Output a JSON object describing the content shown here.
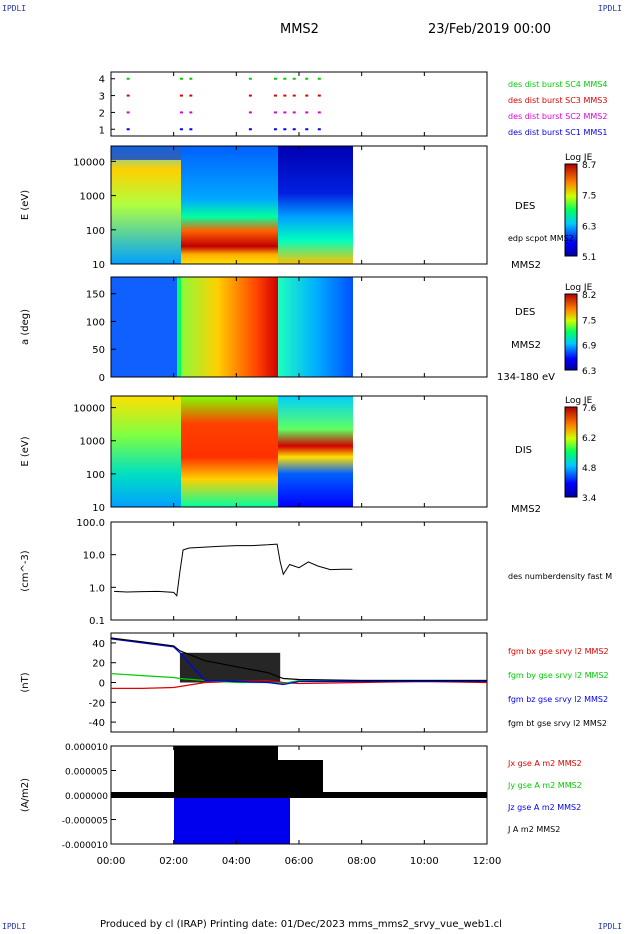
{
  "corners": {
    "tl": "IPDLI",
    "tr": "IPDLI",
    "bl": "IPDLI",
    "br": "IPDLI"
  },
  "header": {
    "spacecraft": "MMS2",
    "date": "23/Feb/2019 00:00"
  },
  "footer": {
    "text": "Produced by cl (IRAP)   Printing date: 01/Dec/2023   mms_mms2_srvy_vue_web1.cl"
  },
  "colors": {
    "black": "#000000",
    "red": "#e00000",
    "green": "#00cc00",
    "blue": "#0000ee",
    "magenta": "#dd00dd"
  },
  "chart_data": [
    {
      "type": "scatter",
      "panel": "burst",
      "y_ticks": [
        "1",
        "2",
        "3",
        "4"
      ],
      "ylim": [
        0.6,
        4.4
      ],
      "xlim": [
        0,
        12
      ],
      "series": [
        {
          "name": "des dist burst SC1 MMS1",
          "color": "#0000ee",
          "y": 1,
          "x": [
            0.5,
            2.2,
            2.5,
            4.4,
            5.2,
            5.5,
            5.8,
            6.2,
            6.6
          ]
        },
        {
          "name": "des dist burst SC2 MMS2",
          "color": "#dd00dd",
          "y": 2,
          "x": [
            0.5,
            2.2,
            2.5,
            4.4,
            5.2,
            5.5,
            5.8,
            6.2,
            6.6
          ]
        },
        {
          "name": "des dist burst SC3 MMS3",
          "color": "#e00000",
          "y": 3,
          "x": [
            0.5,
            2.2,
            2.5,
            4.4,
            5.2,
            5.5,
            5.8,
            6.2,
            6.6
          ]
        },
        {
          "name": "des dist burst SC4 MMS4",
          "color": "#00cc00",
          "y": 4,
          "x": [
            0.5,
            2.2,
            2.5,
            4.4,
            5.2,
            5.5,
            5.8,
            6.2,
            6.6
          ]
        }
      ]
    },
    {
      "type": "heatmap",
      "panel": "des-energy",
      "ylabel": "E (eV)",
      "y_ticks": [
        "10",
        "100",
        "1000",
        "10000"
      ],
      "right_labels": [
        "DES",
        "edp scpot MMS2",
        "MMS2"
      ],
      "colorbar": {
        "title": "Log JE",
        "ticks": [
          "8.7",
          "7.5",
          "6.3",
          "5.1"
        ]
      }
    },
    {
      "type": "heatmap",
      "panel": "des-pitch",
      "ylabel": "a (deg)",
      "y_ticks": [
        "0",
        "50",
        "100",
        "150"
      ],
      "right_labels": [
        "DES",
        "MMS2",
        "134-180 eV"
      ],
      "colorbar": {
        "title": "Log JE",
        "ticks": [
          "8.2",
          "7.5",
          "6.9",
          "6.3"
        ]
      }
    },
    {
      "type": "heatmap",
      "panel": "dis-energy",
      "ylabel": "E (eV)",
      "y_ticks": [
        "10",
        "100",
        "1000",
        "10000"
      ],
      "right_labels": [
        "DIS",
        "MMS2"
      ],
      "colorbar": {
        "title": "Log JE",
        "ticks": [
          "7.6",
          "6.2",
          "4.8",
          "3.4"
        ]
      }
    },
    {
      "type": "line",
      "panel": "density",
      "ylabel": "(cm^-3)",
      "y_ticks": [
        "0.1",
        "1.0",
        "10.0",
        "100.0"
      ],
      "ylim": [
        0.1,
        100
      ],
      "log": true,
      "series": [
        {
          "name": "des numberdensity fast M",
          "color": "#000000",
          "x": [
            0.1,
            0.5,
            1.0,
            1.5,
            2.0,
            2.1,
            2.2,
            2.3,
            2.5,
            3.0,
            3.5,
            4.0,
            4.5,
            5.0,
            5.3,
            5.4,
            5.5,
            5.7,
            6.0,
            6.3,
            6.6,
            7.0,
            7.4,
            7.7
          ],
          "y": [
            0.75,
            0.72,
            0.74,
            0.75,
            0.7,
            0.55,
            3.0,
            14,
            16,
            17,
            18,
            19,
            19,
            20,
            21,
            6,
            2.5,
            5,
            4,
            6,
            4.5,
            3.5,
            3.6,
            3.6
          ]
        }
      ]
    },
    {
      "type": "line",
      "panel": "fgm",
      "ylabel": "(nT)",
      "y_ticks": [
        "-40",
        "-20",
        "0",
        "20",
        "40"
      ],
      "ylim": [
        -50,
        50
      ],
      "series": [
        {
          "name": "fgm bx gse srvy l2 MMS2",
          "color": "#e00000",
          "x": [
            0,
            1,
            2,
            2.2,
            3,
            4,
            5,
            5.5,
            6,
            8,
            10,
            12
          ],
          "y": [
            -6,
            -6,
            -5,
            -4,
            0,
            1,
            2,
            0,
            -1,
            0,
            1,
            0
          ]
        },
        {
          "name": "fgm by gse srvy l2 MMS2",
          "color": "#00cc00",
          "x": [
            0,
            1,
            2,
            2.2,
            3,
            4,
            5,
            5.5,
            6,
            8,
            10,
            12
          ],
          "y": [
            9,
            7,
            5,
            4,
            2,
            0,
            0,
            -1,
            2,
            2,
            2,
            2
          ]
        },
        {
          "name": "fgm bz gse srvy l2 MMS2",
          "color": "#0000ee",
          "x": [
            0,
            1,
            2,
            2.2,
            3,
            4,
            5,
            5.5,
            6,
            8,
            10,
            12
          ],
          "y": [
            44,
            40,
            36,
            30,
            2,
            1,
            0,
            -2,
            1,
            1,
            1,
            1
          ]
        },
        {
          "name": "fgm bt gse srvy l2 MMS2",
          "color": "#000000",
          "x": [
            0,
            1,
            2,
            2.2,
            3,
            4,
            5,
            5.5,
            6,
            8,
            10,
            12
          ],
          "y": [
            45,
            41,
            37,
            32,
            22,
            16,
            10,
            4,
            3,
            2,
            2,
            2
          ]
        }
      ]
    },
    {
      "type": "line",
      "panel": "current",
      "ylabel": "(A/m2)",
      "y_ticks": [
        "-0.000010",
        "-0.000005",
        "0.000000",
        "0.000005",
        "0.000010"
      ],
      "ylim": [
        -1e-05,
        1e-05
      ],
      "series": [
        {
          "name": "Jx gse A m2 MMS2",
          "color": "#e00000"
        },
        {
          "name": "Jy gse A m2 MMS2",
          "color": "#00cc00"
        },
        {
          "name": "Jz gse A m2 MMS2",
          "color": "#0000ee"
        },
        {
          "name": "J A m2 MMS2",
          "color": "#000000"
        }
      ],
      "x_ticks": [
        "00:00",
        "02:00",
        "04:00",
        "06:00",
        "08:00",
        "10:00",
        "12:00"
      ]
    }
  ]
}
